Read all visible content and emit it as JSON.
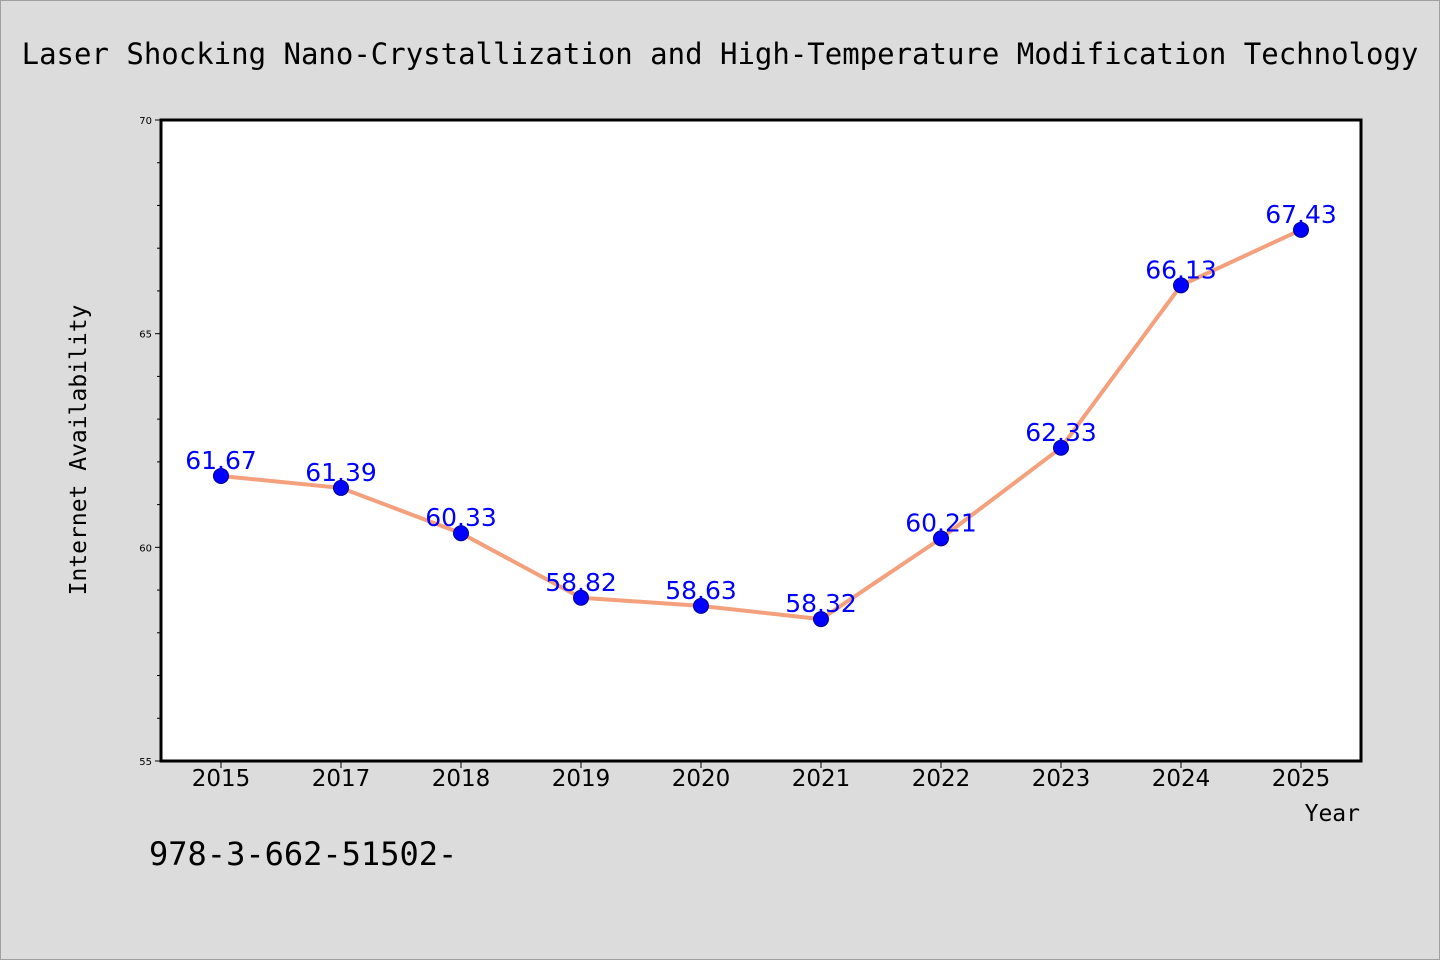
{
  "chart_data": {
    "type": "line",
    "title": "Laser Shocking Nano-Crystallization and High-Temperature Modification Technology",
    "xlabel": "Year",
    "ylabel": "Internet Availability",
    "categories": [
      "2015",
      "2017",
      "2018",
      "2019",
      "2020",
      "2021",
      "2022",
      "2023",
      "2024",
      "2025"
    ],
    "series": [
      {
        "values": [
          61.67,
          61.39,
          60.33,
          58.82,
          58.63,
          58.32,
          60.21,
          62.33,
          66.13,
          67.43
        ],
        "data_labels": [
          "61.67",
          "61.39",
          "60.33",
          "58.82",
          "58.63",
          "58.32",
          "60.21",
          "62.33",
          "66.13",
          "67.43"
        ]
      }
    ],
    "ylim": [
      55,
      70
    ],
    "yticks": [
      "55",
      "60",
      "65",
      "70"
    ],
    "grid": false,
    "legend": "none",
    "colors": {
      "line": "#f4a07c",
      "marker": "#0000ff",
      "data_label": "#0000ff",
      "background": "#dcdcdc",
      "plot_background": "#ffffff"
    }
  },
  "footer": {
    "text": "978-3-662-51502-"
  }
}
